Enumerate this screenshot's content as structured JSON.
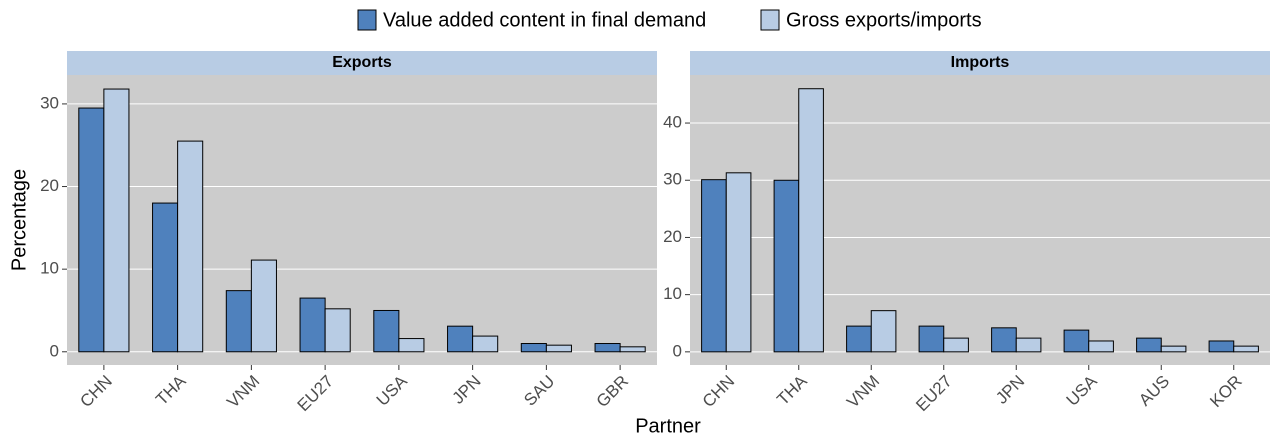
{
  "chart_data": [
    {
      "type": "bar",
      "title": "Exports",
      "y_label": "Percentage",
      "x_label": "Partner",
      "categories": [
        "CHN",
        "THA",
        "VNM",
        "EU27",
        "USA",
        "JPN",
        "SAU",
        "GBR"
      ],
      "series": [
        {
          "name": "Value added content in final demand",
          "color": "#4f81bd",
          "values": [
            29.5,
            18.0,
            7.4,
            6.5,
            5.0,
            3.1,
            1.0,
            1.0
          ]
        },
        {
          "name": "Gross exports/imports",
          "color": "#b8cce4",
          "values": [
            31.8,
            25.5,
            11.1,
            5.2,
            1.6,
            1.9,
            0.8,
            0.6
          ]
        }
      ],
      "ylim": [
        -1.6,
        33.5
      ],
      "yticks": [
        0,
        10,
        20,
        30
      ],
      "grid": true
    },
    {
      "type": "bar",
      "title": "Imports",
      "categories": [
        "CHN",
        "THA",
        "VNM",
        "EU27",
        "JPN",
        "USA",
        "AUS",
        "KOR"
      ],
      "series": [
        {
          "name": "Value added content in final demand",
          "color": "#4f81bd",
          "values": [
            30.1,
            30.0,
            4.5,
            4.5,
            4.2,
            3.8,
            2.4,
            1.9
          ]
        },
        {
          "name": "Gross exports/imports",
          "color": "#b8cce4",
          "values": [
            31.3,
            46.0,
            7.2,
            2.4,
            2.4,
            1.9,
            1.0,
            1.0
          ]
        }
      ],
      "ylim": [
        -2.3,
        48.4
      ],
      "yticks": [
        0,
        10,
        20,
        30,
        40
      ],
      "grid": true
    }
  ]
}
